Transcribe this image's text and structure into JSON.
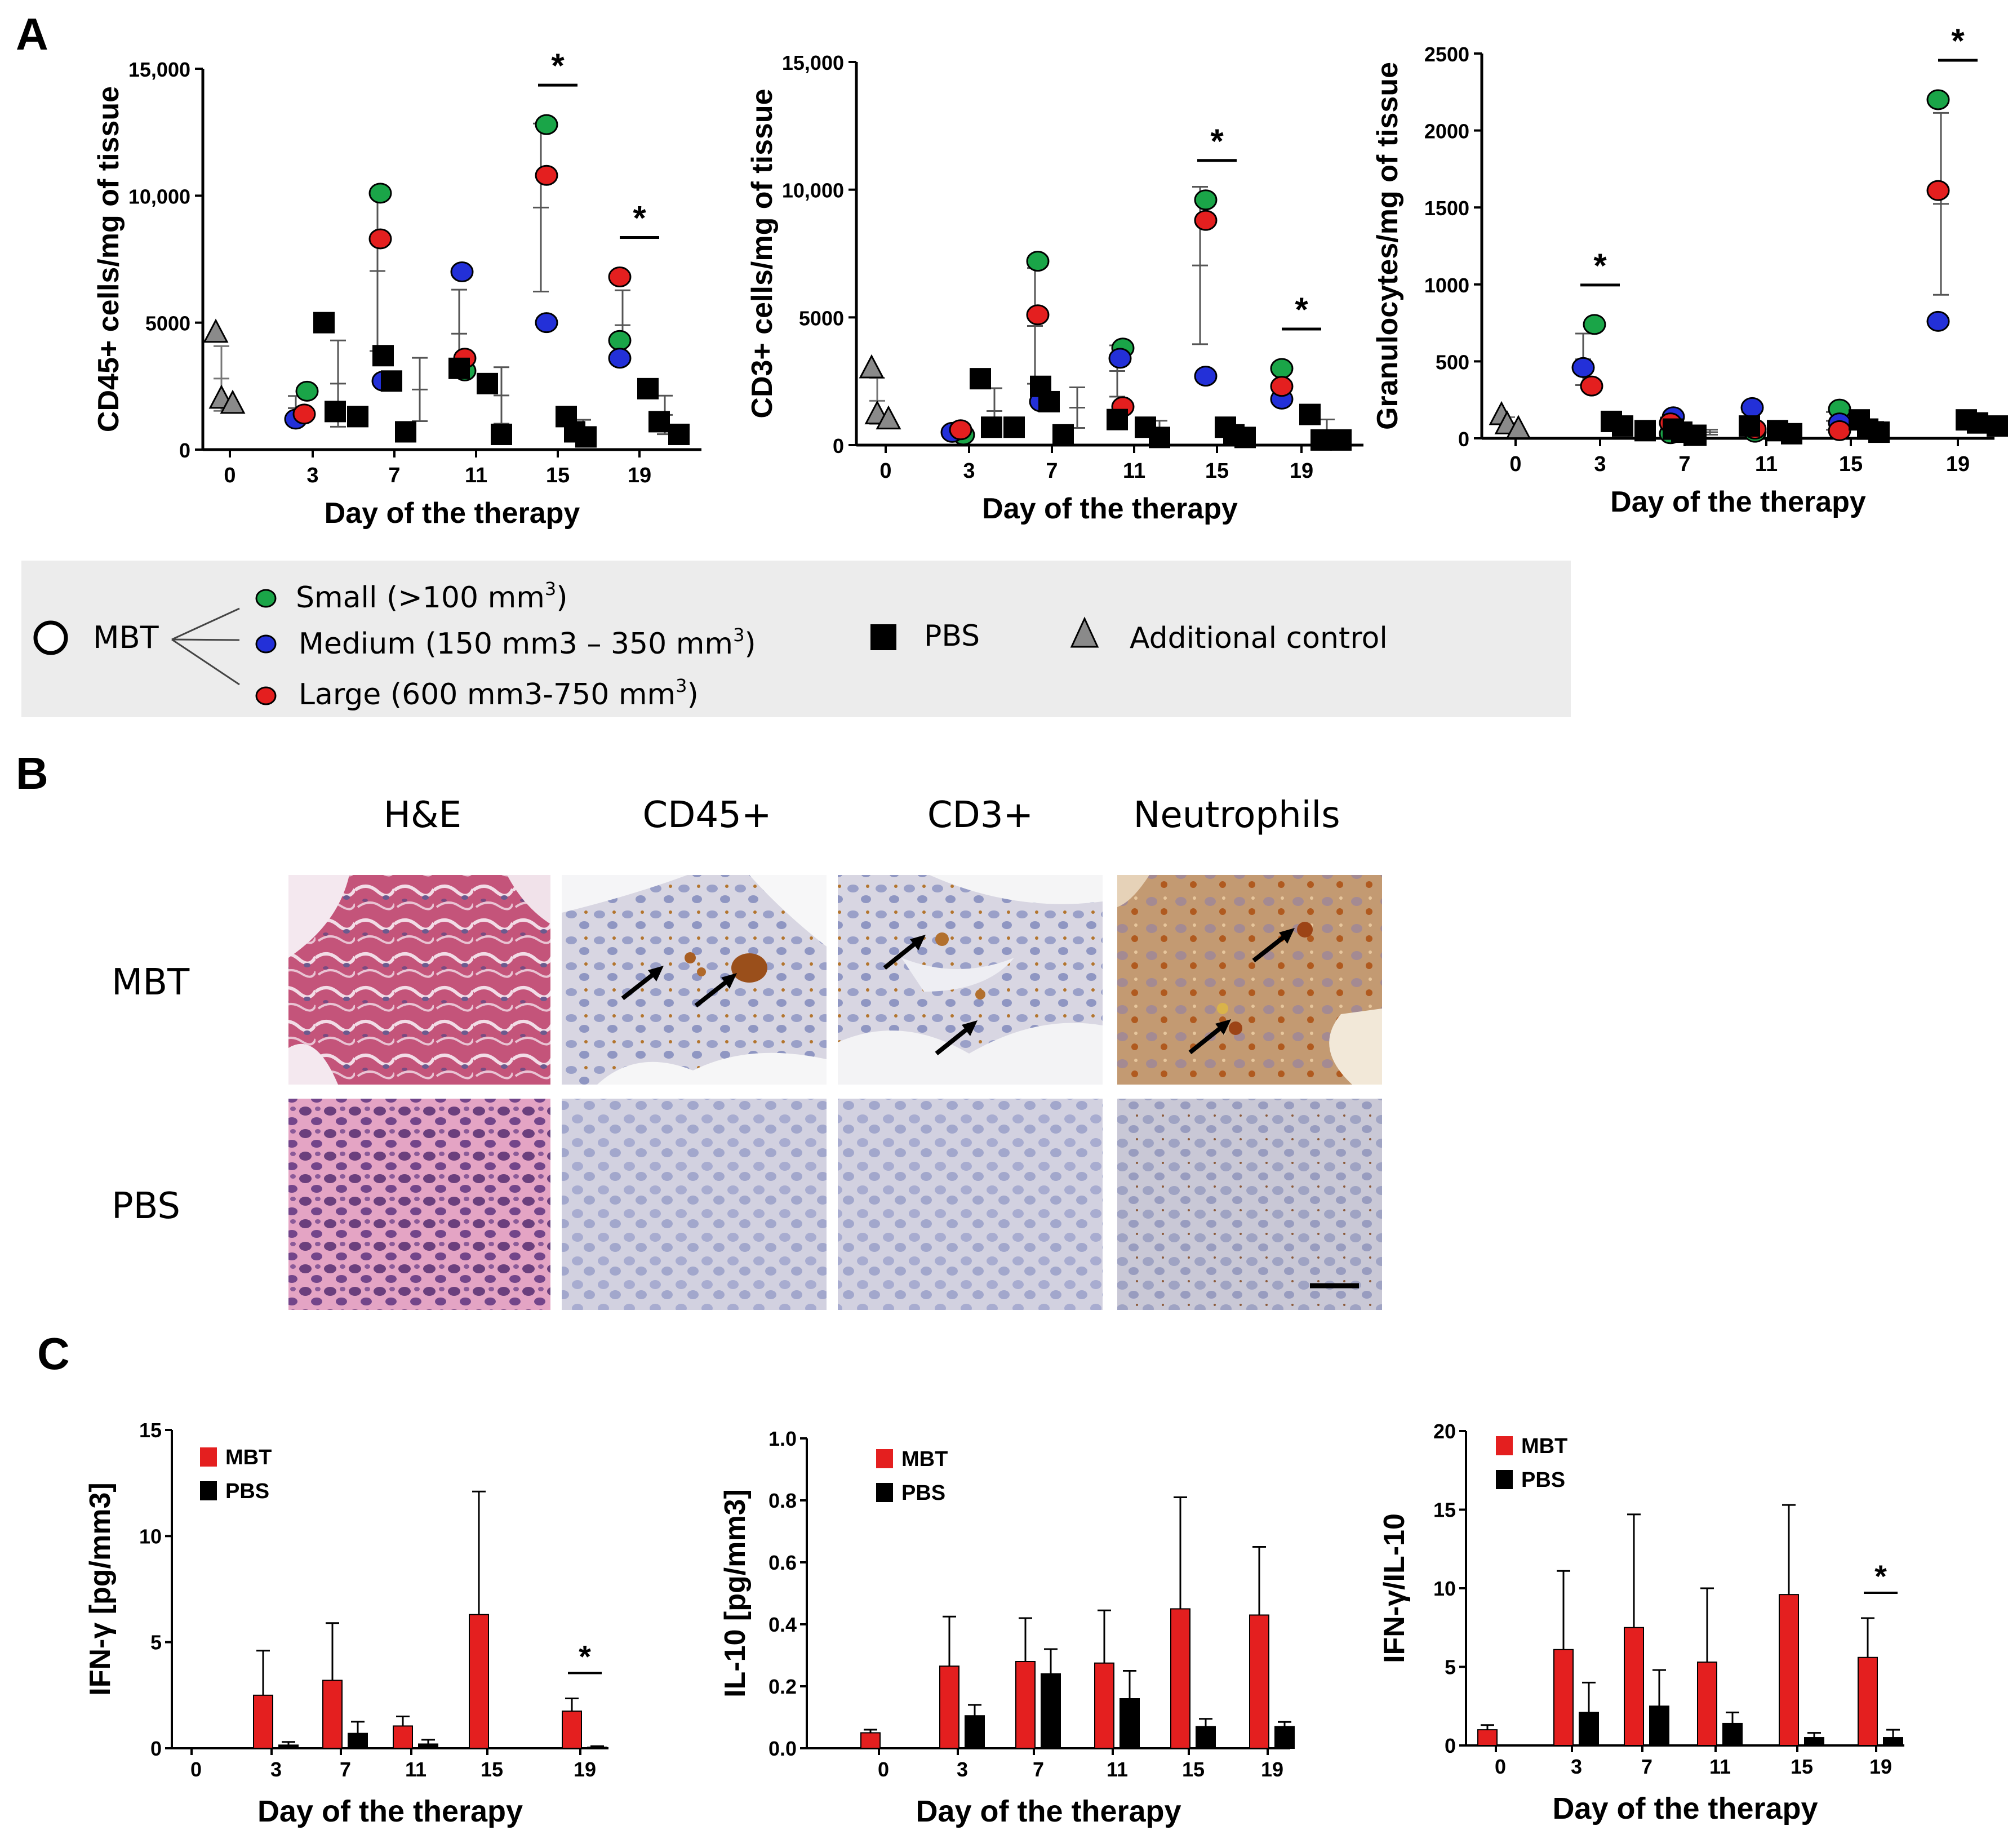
{
  "panels": {
    "a": "A",
    "b": "B",
    "c": "C"
  },
  "colors": {
    "small": "#1aa548",
    "medium": "#2330d8",
    "large": "#e41f1f",
    "pbs": "#000000",
    "control": "#8a8a8a",
    "mbt_bar": "#e41f1f",
    "pbs_bar": "#000000",
    "legend_bg": "#ececec"
  },
  "charts_a": [
    {
      "id": "cd45",
      "ylabel": "CD45+ cells/mg of tissue",
      "xlabel": "Day of the therapy",
      "ylim": [
        0,
        15000
      ],
      "yticks": [
        0,
        5000,
        10000,
        15000
      ],
      "ytick_labels": [
        "0",
        "5000",
        "10,000",
        "15,000"
      ],
      "days": [
        "0",
        "3",
        "7",
        "11",
        "15",
        "19"
      ]
    },
    {
      "id": "cd3",
      "ylabel": "CD3+ cells/mg of tissue",
      "xlabel": "Day of the therapy",
      "ylim": [
        0,
        15000
      ],
      "yticks": [
        0,
        5000,
        10000,
        15000
      ],
      "ytick_labels": [
        "0",
        "5000",
        "10,000",
        "15,000"
      ],
      "days": [
        "0",
        "3",
        "7",
        "11",
        "15",
        "19"
      ]
    },
    {
      "id": "gran",
      "ylabel": "Granulocytes/mg of tissue",
      "xlabel": "Day of the therapy",
      "ylim": [
        0,
        2500
      ],
      "yticks": [
        0,
        500,
        1000,
        1500,
        2000,
        2500
      ],
      "ytick_labels": [
        "0",
        "500",
        "1000",
        "1500",
        "2000",
        "2500"
      ],
      "days": [
        "0",
        "3",
        "7",
        "11",
        "15",
        "19"
      ]
    }
  ],
  "legend": {
    "mbt": "MBT",
    "small": "Small (>100 mm",
    "small_sup": "3",
    "small_end": ")",
    "medium": "Medium (150 mm3 – 350  mm",
    "medium_sup": "3",
    "medium_end": ")",
    "large": "Large (600 mm3-750  mm",
    "large_sup": "3",
    "large_end": ")",
    "pbs": "PBS",
    "control": "Additional control"
  },
  "histology": {
    "columns": [
      "H&E",
      "CD45+",
      "CD3+",
      "Neutrophils"
    ],
    "rows": [
      "MBT",
      "PBS"
    ]
  },
  "charts_c": [
    {
      "id": "ifng",
      "ylabel": "IFN-γ [pg/mm3]",
      "xlabel": "Day of the therapy",
      "ylim": [
        0,
        15
      ],
      "yticks": [
        0,
        5,
        10,
        15
      ],
      "ytick_labels": [
        "0",
        "5",
        "10",
        "15"
      ],
      "legend": [
        "MBT",
        "PBS"
      ]
    },
    {
      "id": "il10",
      "ylabel": "IL-10 [pg/mm3]",
      "xlabel": "Day of the therapy",
      "ylim": [
        0,
        1.0
      ],
      "yticks": [
        0,
        0.2,
        0.4,
        0.6,
        0.8,
        1.0
      ],
      "ytick_labels": [
        "0.0",
        "0.2",
        "0.4",
        "0.6",
        "0.8",
        "1.0"
      ],
      "legend": [
        "MBT",
        "PBS"
      ]
    },
    {
      "id": "ratio",
      "ylabel": "IFN-γ/IL-10",
      "xlabel": "Day of the therapy",
      "ylim": [
        0,
        20
      ],
      "yticks": [
        0,
        5,
        10,
        15,
        20
      ],
      "ytick_labels": [
        "0",
        "5",
        "10",
        "15",
        "20"
      ],
      "legend": [
        "MBT",
        "PBS"
      ]
    }
  ],
  "chart_data": [
    {
      "type": "scatter",
      "title": "",
      "xlabel": "Day of the therapy",
      "ylabel": "CD45+ cells/mg of tissue",
      "ylim": [
        0,
        15000
      ],
      "categories": [
        "0",
        "3",
        "7",
        "11",
        "15",
        "19"
      ],
      "series": [
        {
          "name": "Small (>100 mm3)",
          "points": [
            {
              "day": "3",
              "y": 2300
            },
            {
              "day": "7",
              "y": 10100
            },
            {
              "day": "11",
              "y": 3100
            },
            {
              "day": "15",
              "y": 12800
            },
            {
              "day": "19",
              "y": 4300
            }
          ]
        },
        {
          "name": "Medium",
          "points": [
            {
              "day": "3",
              "y": 1200
            },
            {
              "day": "7",
              "y": 2700
            },
            {
              "day": "11",
              "y": 7000
            },
            {
              "day": "15",
              "y": 5000
            },
            {
              "day": "19",
              "y": 3600
            }
          ]
        },
        {
          "name": "Large",
          "points": [
            {
              "day": "3",
              "y": 1400
            },
            {
              "day": "7",
              "y": 8300
            },
            {
              "day": "11",
              "y": 3600
            },
            {
              "day": "15",
              "y": 10800
            },
            {
              "day": "19",
              "y": 6800
            }
          ]
        },
        {
          "name": "PBS",
          "points": [
            {
              "day": "3",
              "y": 5000
            },
            {
              "day": "3",
              "y": 1500
            },
            {
              "day": "3",
              "y": 1300
            },
            {
              "day": "7",
              "y": 3700
            },
            {
              "day": "7",
              "y": 2700
            },
            {
              "day": "7",
              "y": 700
            },
            {
              "day": "11",
              "y": 3200
            },
            {
              "day": "11",
              "y": 2600
            },
            {
              "day": "11",
              "y": 600
            },
            {
              "day": "15",
              "y": 1300
            },
            {
              "day": "15",
              "y": 700
            },
            {
              "day": "15",
              "y": 500
            },
            {
              "day": "19",
              "y": 2400
            },
            {
              "day": "19",
              "y": 1100
            },
            {
              "day": "19",
              "y": 600
            }
          ]
        },
        {
          "name": "Additional control",
          "points": [
            {
              "day": "0",
              "y": 4600
            },
            {
              "day": "0",
              "y": 2000
            },
            {
              "day": "0",
              "y": 1800
            }
          ]
        }
      ],
      "significance": [
        "15",
        "19"
      ]
    },
    {
      "type": "scatter",
      "title": "",
      "xlabel": "Day of the therapy",
      "ylabel": "CD3+ cells/mg of tissue",
      "ylim": [
        0,
        15000
      ],
      "categories": [
        "0",
        "3",
        "7",
        "11",
        "15",
        "19"
      ],
      "series": [
        {
          "name": "Small (>100 mm3)",
          "points": [
            {
              "day": "3",
              "y": 400
            },
            {
              "day": "7",
              "y": 7200
            },
            {
              "day": "11",
              "y": 3800
            },
            {
              "day": "15",
              "y": 9600
            },
            {
              "day": "19",
              "y": 3000
            }
          ]
        },
        {
          "name": "Medium",
          "points": [
            {
              "day": "3",
              "y": 500
            },
            {
              "day": "7",
              "y": 1700
            },
            {
              "day": "11",
              "y": 3400
            },
            {
              "day": "15",
              "y": 2700
            },
            {
              "day": "19",
              "y": 1800
            }
          ]
        },
        {
          "name": "Large",
          "points": [
            {
              "day": "3",
              "y": 600
            },
            {
              "day": "7",
              "y": 5100
            },
            {
              "day": "11",
              "y": 1500
            },
            {
              "day": "15",
              "y": 8800
            },
            {
              "day": "19",
              "y": 2300
            }
          ]
        },
        {
          "name": "PBS",
          "points": [
            {
              "day": "3",
              "y": 2600
            },
            {
              "day": "3",
              "y": 700
            },
            {
              "day": "3",
              "y": 700
            },
            {
              "day": "7",
              "y": 2300
            },
            {
              "day": "7",
              "y": 1700
            },
            {
              "day": "7",
              "y": 400
            },
            {
              "day": "11",
              "y": 1000
            },
            {
              "day": "11",
              "y": 700
            },
            {
              "day": "11",
              "y": 300
            },
            {
              "day": "15",
              "y": 700
            },
            {
              "day": "15",
              "y": 400
            },
            {
              "day": "15",
              "y": 300
            },
            {
              "day": "19",
              "y": 1200
            },
            {
              "day": "19",
              "y": 200
            },
            {
              "day": "19",
              "y": 200
            }
          ]
        },
        {
          "name": "Additional control",
          "points": [
            {
              "day": "0",
              "y": 3000
            },
            {
              "day": "0",
              "y": 1200
            },
            {
              "day": "0",
              "y": 1000
            }
          ]
        }
      ],
      "significance": [
        "15",
        "19"
      ]
    },
    {
      "type": "scatter",
      "title": "",
      "xlabel": "Day of the therapy",
      "ylabel": "Granulocytes/mg of tissue",
      "ylim": [
        0,
        2500
      ],
      "categories": [
        "0",
        "3",
        "7",
        "11",
        "15",
        "19"
      ],
      "series": [
        {
          "name": "Small (>100 mm3)",
          "points": [
            {
              "day": "3",
              "y": 740
            },
            {
              "day": "7",
              "y": 30
            },
            {
              "day": "11",
              "y": 40
            },
            {
              "day": "15",
              "y": 190
            },
            {
              "day": "19",
              "y": 2200
            }
          ]
        },
        {
          "name": "Medium",
          "points": [
            {
              "day": "3",
              "y": 460
            },
            {
              "day": "7",
              "y": 140
            },
            {
              "day": "11",
              "y": 200
            },
            {
              "day": "15",
              "y": 100
            },
            {
              "day": "19",
              "y": 760
            }
          ]
        },
        {
          "name": "Large",
          "points": [
            {
              "day": "3",
              "y": 340
            },
            {
              "day": "7",
              "y": 100
            },
            {
              "day": "11",
              "y": 60
            },
            {
              "day": "15",
              "y": 50
            },
            {
              "day": "19",
              "y": 1610
            }
          ]
        },
        {
          "name": "PBS",
          "points": [
            {
              "day": "3",
              "y": 110
            },
            {
              "day": "3",
              "y": 80
            },
            {
              "day": "3",
              "y": 50
            },
            {
              "day": "7",
              "y": 60
            },
            {
              "day": "7",
              "y": 40
            },
            {
              "day": "7",
              "y": 20
            },
            {
              "day": "11",
              "y": 80
            },
            {
              "day": "11",
              "y": 50
            },
            {
              "day": "11",
              "y": 30
            },
            {
              "day": "15",
              "y": 120
            },
            {
              "day": "15",
              "y": 60
            },
            {
              "day": "15",
              "y": 40
            },
            {
              "day": "19",
              "y": 120
            },
            {
              "day": "19",
              "y": 100
            },
            {
              "day": "19",
              "y": 80
            }
          ]
        },
        {
          "name": "Additional control",
          "points": [
            {
              "day": "0",
              "y": 150
            },
            {
              "day": "0",
              "y": 90
            },
            {
              "day": "0",
              "y": 60
            }
          ]
        }
      ],
      "significance": [
        "3",
        "19"
      ]
    },
    {
      "type": "bar",
      "title": "",
      "xlabel": "Day of the therapy",
      "ylabel": "IFN-γ [pg/mm3]",
      "ylim": [
        0,
        15
      ],
      "categories": [
        "0",
        "3",
        "7",
        "11",
        "15",
        "19"
      ],
      "series": [
        {
          "name": "MBT",
          "values": [
            0,
            2.5,
            3.2,
            1.05,
            6.3,
            1.75
          ],
          "errors": [
            0,
            2.1,
            2.7,
            0.45,
            5.8,
            0.6
          ]
        },
        {
          "name": "PBS",
          "values": [
            0,
            0.15,
            0.7,
            0.2,
            0,
            0.05
          ],
          "errors": [
            0,
            0.15,
            0.55,
            0.2,
            0,
            0.05
          ]
        }
      ],
      "significance": [
        "19"
      ]
    },
    {
      "type": "bar",
      "title": "",
      "xlabel": "Day of the therapy",
      "ylabel": "IL-10 [pg/mm3]",
      "ylim": [
        0,
        1.0
      ],
      "categories": [
        "0",
        "3",
        "7",
        "11",
        "15",
        "19"
      ],
      "series": [
        {
          "name": "MBT",
          "values": [
            0.05,
            0.265,
            0.28,
            0.275,
            0.45,
            0.43
          ],
          "errors": [
            0.01,
            0.16,
            0.14,
            0.17,
            0.36,
            0.22
          ]
        },
        {
          "name": "PBS",
          "values": [
            0,
            0.105,
            0.24,
            0.16,
            0.07,
            0.07
          ],
          "errors": [
            0,
            0.035,
            0.08,
            0.09,
            0.025,
            0.015
          ]
        }
      ],
      "significance": []
    },
    {
      "type": "bar",
      "title": "",
      "xlabel": "Day of the therapy",
      "ylabel": "IFN-γ/IL-10",
      "ylim": [
        0,
        20
      ],
      "categories": [
        "0",
        "3",
        "7",
        "11",
        "15",
        "19"
      ],
      "series": [
        {
          "name": "MBT",
          "values": [
            1.0,
            6.1,
            7.5,
            5.3,
            9.6,
            5.6
          ],
          "errors": [
            0.3,
            5.0,
            7.2,
            4.7,
            5.7,
            2.5
          ]
        },
        {
          "name": "PBS",
          "values": [
            0,
            2.1,
            2.5,
            1.4,
            0.5,
            0.5
          ],
          "errors": [
            0,
            1.9,
            2.3,
            0.7,
            0.3,
            0.5
          ]
        }
      ],
      "significance": [
        "19"
      ]
    }
  ]
}
